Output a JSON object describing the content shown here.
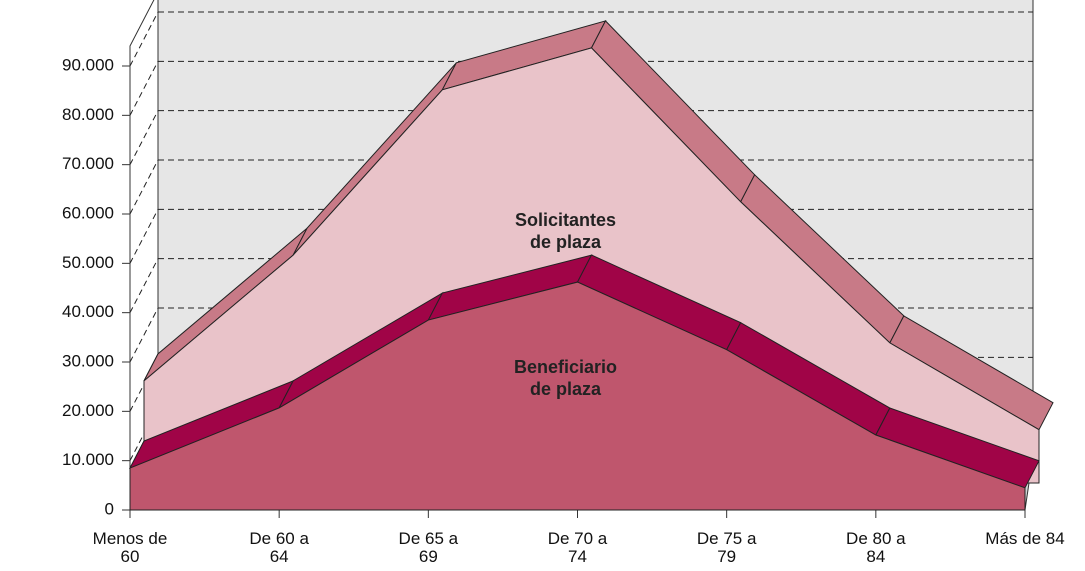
{
  "chart_data": {
    "type": "area3d",
    "categories": [
      "Menos de\n60",
      "De 60 a\n64",
      "De 65 a\n69",
      "De 70 a\n74",
      "De 75 a\n79",
      "De 80 a\n84",
      "Más de 84"
    ],
    "series": [
      {
        "name": "Solicitantes\nde plaza",
        "color": "#e9c3c9",
        "top_color": "#c87a87",
        "values": [
          20700,
          46200,
          79700,
          88200,
          57000,
          28400,
          10800
        ]
      },
      {
        "name": "Beneficiario\nde plaza",
        "color": "#bf566d",
        "top_color": "#a00447",
        "values": [
          8500,
          20700,
          38500,
          46200,
          32500,
          15200,
          4500
        ]
      }
    ],
    "ylim": [
      0,
      90000
    ],
    "yticks": [
      0,
      {
        "value": 10000,
        "label": "10.000"
      },
      {
        "value": 20000,
        "label": "20.000"
      },
      {
        "value": 30000,
        "label": "30.000"
      },
      {
        "value": 40000,
        "label": "40.000"
      },
      {
        "value": 50000,
        "label": "50.000"
      },
      {
        "value": 60000,
        "label": "60.000"
      },
      {
        "value": 70000,
        "label": "70.000"
      },
      {
        "value": 80000,
        "label": "80.000"
      },
      {
        "value": 90000,
        "label": "90.000"
      }
    ],
    "grid": true
  }
}
